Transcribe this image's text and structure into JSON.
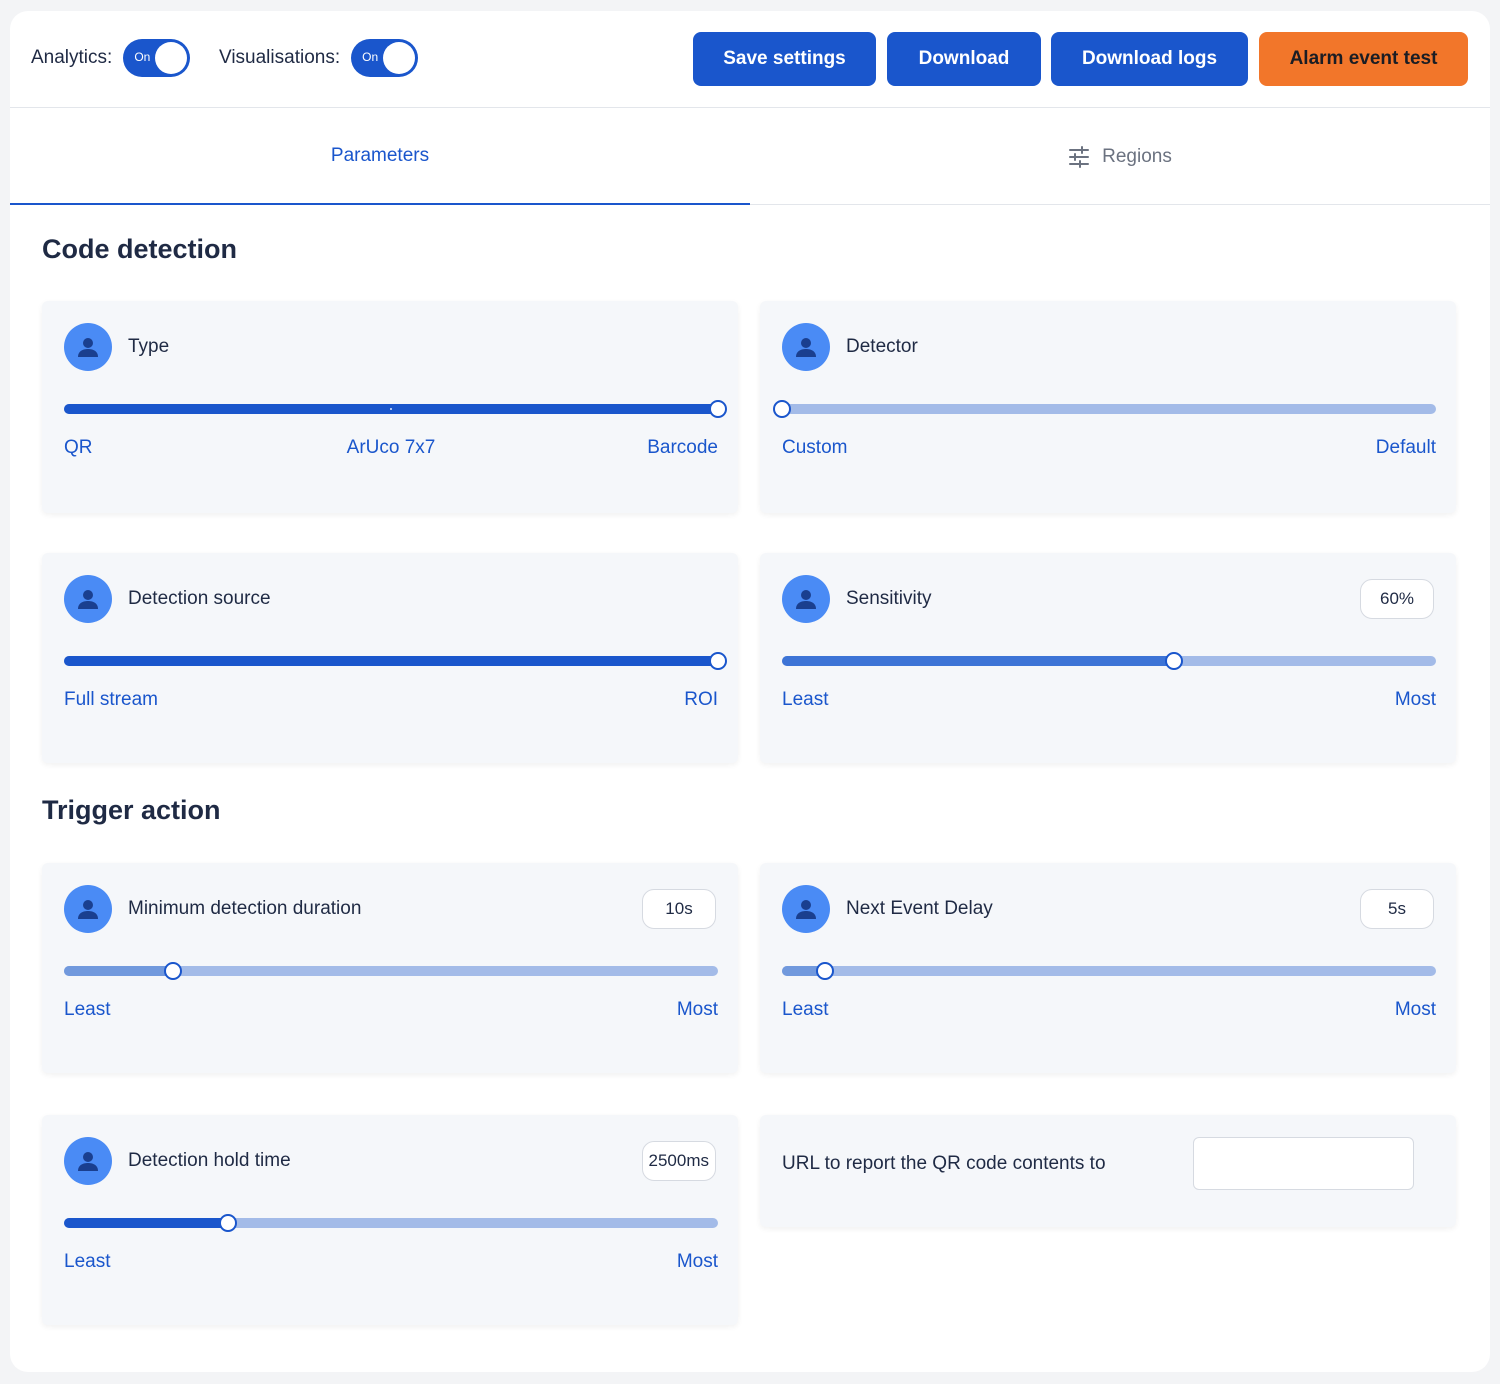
{
  "header": {
    "analytics": {
      "label": "Analytics:",
      "state": "On",
      "on": true
    },
    "visualisations": {
      "label": "Visualisations:",
      "state": "On",
      "on": true
    },
    "buttons": {
      "save": "Save settings",
      "download": "Download",
      "download_logs": "Download logs",
      "alarm_test": "Alarm event test"
    }
  },
  "tabs": {
    "parameters": "Parameters",
    "regions": "Regions",
    "active": "parameters",
    "regions_icon": "sliders-icon"
  },
  "sections": {
    "code_detection": "Code detection",
    "trigger_action": "Trigger action"
  },
  "cards": {
    "type": {
      "title": "Type",
      "icon": "user-icon",
      "options": [
        "QR",
        "ArUco 7x7",
        "Barcode"
      ],
      "selected": "Barcode",
      "value_fraction": 1.0
    },
    "detector": {
      "title": "Detector",
      "icon": "user-icon",
      "options": [
        "Custom",
        "Default"
      ],
      "selected": "Custom",
      "value_fraction": 0.0
    },
    "detection_source": {
      "title": "Detection source",
      "icon": "user-icon",
      "options": [
        "Full stream",
        "ROI"
      ],
      "selected": "ROI",
      "value_fraction": 1.0
    },
    "sensitivity": {
      "title": "Sensitivity",
      "icon": "user-icon",
      "value": "60%",
      "min_label": "Least",
      "max_label": "Most",
      "value_fraction": 0.6
    },
    "min_duration": {
      "title": "Minimum detection duration",
      "icon": "user-icon",
      "value": "10s",
      "min_label": "Least",
      "max_label": "Most",
      "value_fraction": 0.166
    },
    "next_event_delay": {
      "title": "Next Event Delay",
      "icon": "user-icon",
      "value": "5s",
      "min_label": "Least",
      "max_label": "Most",
      "value_fraction": 0.066
    },
    "hold_time": {
      "title": "Detection hold time",
      "icon": "user-icon",
      "value": "2500ms",
      "min_label": "Least",
      "max_label": "Most",
      "value_fraction": 0.25
    },
    "url": {
      "label": "URL to report the QR code contents to",
      "value": "",
      "placeholder": ""
    }
  },
  "colors": {
    "primary": "#1a56cc",
    "accent_orange": "#f2762a",
    "track_light": "#a3bbe8",
    "fill_medium": "#3d74d6",
    "fill_soft": "#7199dd",
    "avatar": "#4a8bf5"
  }
}
